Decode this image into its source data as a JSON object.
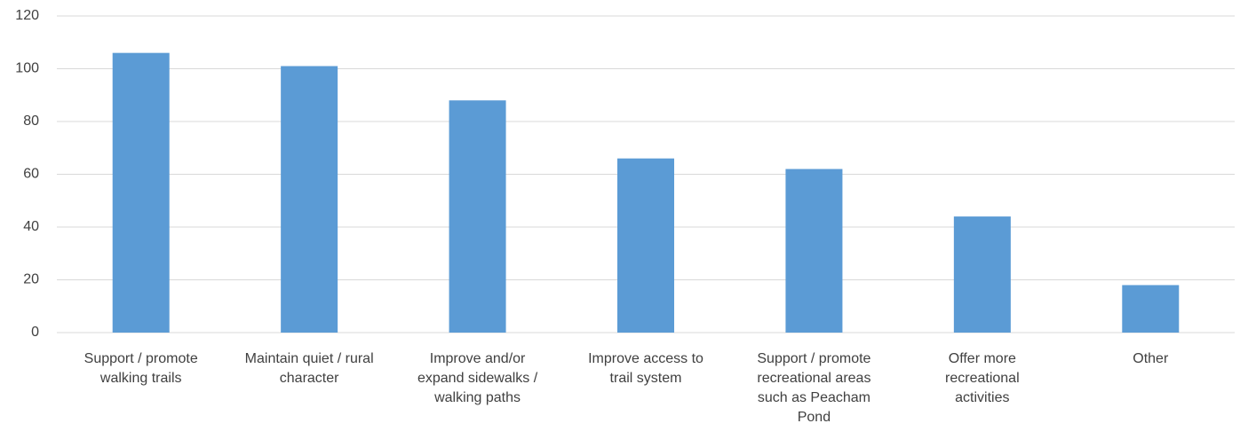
{
  "chart_data": {
    "type": "bar",
    "categories": [
      "Support / promote walking trails",
      "Maintain quiet / rural character",
      "Improve and/or expand sidewalks / walking paths",
      "Improve access to trail system",
      "Support / promote recreational areas such as Peacham Pond",
      "Offer more recreational activities",
      "Other"
    ],
    "values": [
      106,
      101,
      88,
      66,
      62,
      44,
      18
    ],
    "color": "#5b9bd5",
    "ylim": [
      0,
      120
    ],
    "yticks": [
      0,
      20,
      40,
      60,
      80,
      100,
      120
    ],
    "grid": true
  }
}
